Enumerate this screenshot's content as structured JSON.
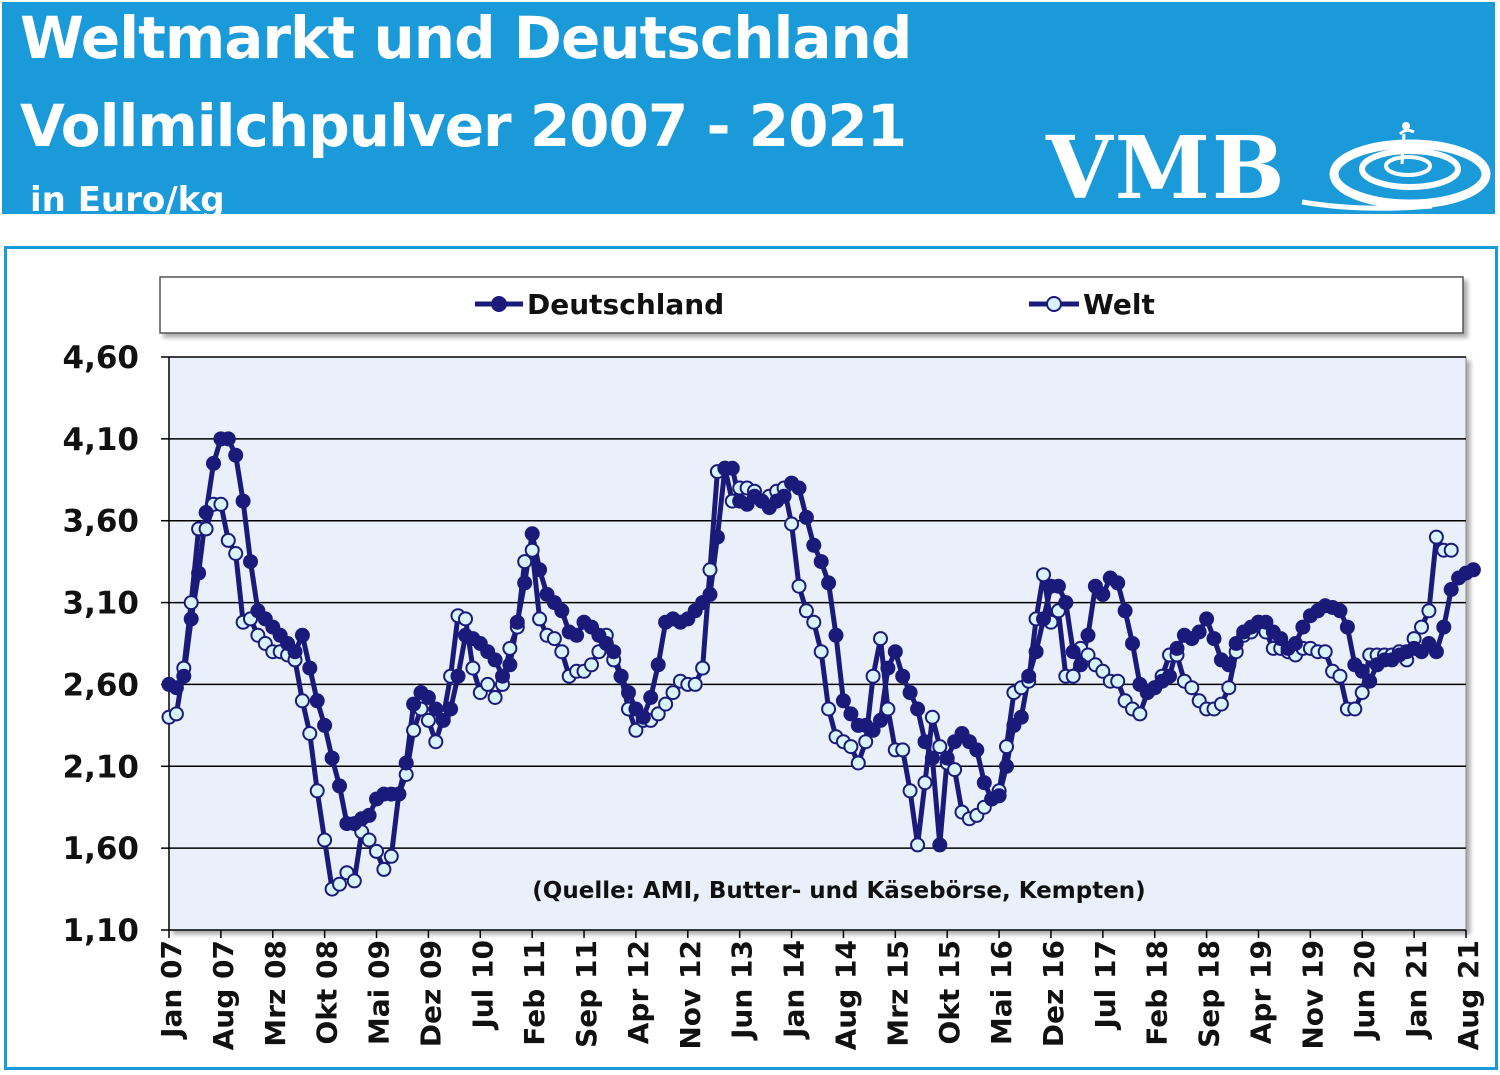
{
  "header": {
    "title_line1": "Weltmarkt und Deutschland",
    "title_line2": "Vollmilchpulver 2007 - 2021",
    "unit": "in Euro/kg",
    "logo_text": "VMB",
    "background_color": "#1a9ad9"
  },
  "chart_data": {
    "type": "line",
    "ylim": [
      1.1,
      4.6
    ],
    "yticks": [
      "4,60",
      "4,10",
      "3,60",
      "3,10",
      "2,60",
      "2,10",
      "1,60",
      "1,10"
    ],
    "ytick_values": [
      4.6,
      4.1,
      3.6,
      3.1,
      2.6,
      2.1,
      1.6,
      1.1
    ],
    "xtick_labels": [
      "Jan 07",
      "Aug 07",
      "Mrz 08",
      "Okt 08",
      "Mai 09",
      "Dez 09",
      "Jul 10",
      "Feb 11",
      "Sep 11",
      "Apr 12",
      "Nov 12",
      "Jun 13",
      "Jan 14",
      "Aug 14",
      "Mrz 15",
      "Okt 15",
      "Mai 16",
      "Dez 16",
      "Jul 17",
      "Feb 18",
      "Sep 18",
      "Apr 19",
      "Nov 19",
      "Jun 20",
      "Jan 21",
      "Aug 21"
    ],
    "x_start": "Jan 07",
    "x_step": "1 Monat",
    "grid": true,
    "legend_position": "top",
    "annotation": "(Quelle: AMI, Butter- und Käsebörse, Kempten)",
    "series": [
      {
        "name": "Deutschland",
        "color": "#1a1a7a",
        "marker_fill": "#1a1a7a",
        "values": [
          2.6,
          2.58,
          2.65,
          3.0,
          3.28,
          3.65,
          3.95,
          4.1,
          4.1,
          4.0,
          3.72,
          3.35,
          3.05,
          3.0,
          2.95,
          2.9,
          2.85,
          2.8,
          2.9,
          2.7,
          2.5,
          2.35,
          2.15,
          1.98,
          1.75,
          1.75,
          1.78,
          1.8,
          1.9,
          1.93,
          1.93,
          1.93,
          2.12,
          2.48,
          2.55,
          2.52,
          2.45,
          2.38,
          2.45,
          2.65,
          2.9,
          2.88,
          2.85,
          2.8,
          2.75,
          2.65,
          2.72,
          2.98,
          3.22,
          3.52,
          3.3,
          3.15,
          3.1,
          3.05,
          2.92,
          2.9,
          2.98,
          2.95,
          2.9,
          2.85,
          2.8,
          2.65,
          2.55,
          2.45,
          2.4,
          2.52,
          2.72,
          2.98,
          3.0,
          2.98,
          3.0,
          3.05,
          3.1,
          3.15,
          3.5,
          3.92,
          3.92,
          3.72,
          3.7,
          3.75,
          3.72,
          3.68,
          3.72,
          3.75,
          3.83,
          3.8,
          3.62,
          3.45,
          3.35,
          3.22,
          2.9,
          2.5,
          2.42,
          2.35,
          2.35,
          2.32,
          2.38,
          2.7,
          2.8,
          2.65,
          2.55,
          2.45,
          2.25,
          2.15,
          1.62,
          2.15,
          2.25,
          2.3,
          2.25,
          2.2,
          2.0,
          1.9,
          1.92,
          2.1,
          2.35,
          2.4,
          2.65,
          2.8,
          3.0,
          3.2,
          3.2,
          3.1,
          2.8,
          2.72,
          2.9,
          3.2,
          3.15,
          3.25,
          3.22,
          3.05,
          2.85,
          2.6,
          2.55,
          2.58,
          2.62,
          2.65,
          2.82,
          2.9,
          2.88,
          2.92,
          3.0,
          2.88,
          2.75,
          2.72,
          2.85,
          2.92,
          2.95,
          2.98,
          2.98,
          2.92,
          2.88,
          2.82,
          2.85,
          2.95,
          3.02,
          3.05,
          3.08,
          3.07,
          3.05,
          2.95,
          2.72,
          2.68,
          2.62,
          2.72,
          2.75,
          2.75,
          2.78,
          2.8,
          2.82,
          2.8,
          2.85,
          2.8,
          2.95,
          3.18,
          3.25,
          3.28,
          3.3
        ]
      },
      {
        "name": "Welt",
        "color": "#1a1a7a",
        "marker_fill": "#d8f4f8",
        "values": [
          2.4,
          2.42,
          2.7,
          3.1,
          3.55,
          3.55,
          3.7,
          3.7,
          3.48,
          3.4,
          2.98,
          3.0,
          2.9,
          2.85,
          2.8,
          2.8,
          2.78,
          2.75,
          2.5,
          2.3,
          1.95,
          1.65,
          1.35,
          1.38,
          1.45,
          1.4,
          1.7,
          1.65,
          1.58,
          1.47,
          1.55,
          1.93,
          2.05,
          2.32,
          2.45,
          2.38,
          2.25,
          2.4,
          2.65,
          3.02,
          3.0,
          2.7,
          2.55,
          2.6,
          2.52,
          2.6,
          2.82,
          2.95,
          3.35,
          3.42,
          3.0,
          2.9,
          2.88,
          2.8,
          2.65,
          2.68,
          2.68,
          2.72,
          2.8,
          2.9,
          2.75,
          2.65,
          2.45,
          2.32,
          2.38,
          2.38,
          2.42,
          2.48,
          2.55,
          2.62,
          2.6,
          2.6,
          2.7,
          3.3,
          3.9,
          3.92,
          3.72,
          3.8,
          3.8,
          3.78,
          3.72,
          3.75,
          3.78,
          3.8,
          3.58,
          3.2,
          3.05,
          2.98,
          2.8,
          2.45,
          2.28,
          2.25,
          2.22,
          2.12,
          2.25,
          2.65,
          2.88,
          2.45,
          2.2,
          2.2,
          1.95,
          1.62,
          2.0,
          2.4,
          2.22,
          2.12,
          2.08,
          1.82,
          1.78,
          1.8,
          1.85,
          1.9,
          1.95,
          2.22,
          2.55,
          2.58,
          2.62,
          3.0,
          3.27,
          2.98,
          3.05,
          2.65,
          2.65,
          2.82,
          2.78,
          2.72,
          2.68,
          2.62,
          2.62,
          2.5,
          2.45,
          2.42,
          2.55,
          2.58,
          2.65,
          2.78,
          2.78,
          2.62,
          2.58,
          2.5,
          2.45,
          2.45,
          2.48,
          2.58,
          2.8,
          2.9,
          2.92,
          2.98,
          2.92,
          2.82,
          2.82,
          2.8,
          2.78,
          2.82,
          2.82,
          2.8,
          2.8,
          2.68,
          2.65,
          2.45,
          2.45,
          2.55,
          2.78,
          2.78,
          2.78,
          2.78,
          2.8,
          2.75,
          2.88,
          2.95,
          3.05,
          3.5,
          3.42,
          3.42
        ]
      }
    ]
  }
}
